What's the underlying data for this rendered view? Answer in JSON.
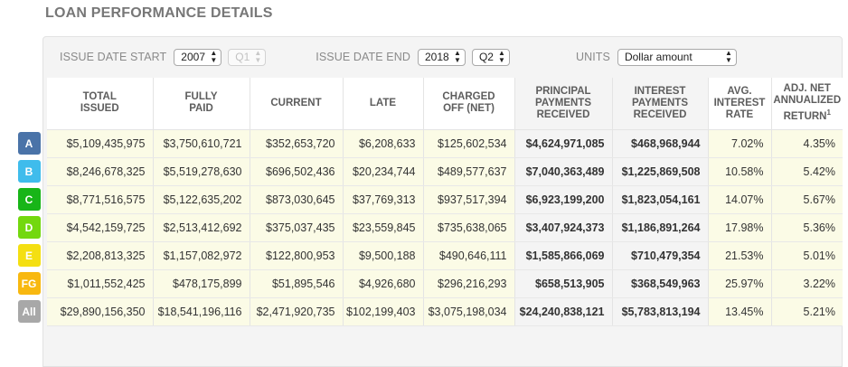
{
  "title": "LOAN PERFORMANCE DETAILS",
  "filters": {
    "issue_start_label": "ISSUE DATE START",
    "issue_start_year": "2007",
    "issue_start_quarter": "Q1",
    "issue_end_label": "ISSUE DATE END",
    "issue_end_year": "2018",
    "issue_end_quarter": "Q2",
    "units_label": "UNITS",
    "units_value": "Dollar amount"
  },
  "headers": {
    "total_issued": [
      "TOTAL",
      "ISSUED"
    ],
    "fully_paid": [
      "FULLY",
      "PAID"
    ],
    "current": [
      "CURRENT"
    ],
    "late": [
      "LATE"
    ],
    "charged_off": [
      "CHARGED",
      "OFF (NET)"
    ],
    "principal": [
      "PRINCIPAL",
      "PAYMENTS",
      "RECEIVED"
    ],
    "interest": [
      "INTEREST",
      "PAYMENTS",
      "RECEIVED"
    ],
    "avg_rate": [
      "AVG.",
      "INTEREST",
      "RATE"
    ],
    "adj_return": [
      "ADJ. NET",
      "ANNUALIZED",
      "RETURN"
    ],
    "adj_return_sup": "1"
  },
  "rows": [
    {
      "grade": "A",
      "color": "#4a73a8",
      "total": "$5,109,435,975",
      "fully": "$3,750,610,721",
      "current": "$352,653,720",
      "late": "$6,208,633",
      "charged": "$125,602,534",
      "principal": "$4,624,971,085",
      "interest": "$468,968,944",
      "rate": "7.02%",
      "ret": "4.35%"
    },
    {
      "grade": "B",
      "color": "#3fbcec",
      "total": "$8,246,678,325",
      "fully": "$5,519,278,630",
      "current": "$696,502,436",
      "late": "$20,234,744",
      "charged": "$489,577,637",
      "principal": "$7,040,363,489",
      "interest": "$1,225,869,508",
      "rate": "10.58%",
      "ret": "5.42%"
    },
    {
      "grade": "C",
      "color": "#18b518",
      "total": "$8,771,516,575",
      "fully": "$5,122,635,202",
      "current": "$873,030,645",
      "late": "$37,769,313",
      "charged": "$937,517,394",
      "principal": "$6,923,199,200",
      "interest": "$1,823,054,161",
      "rate": "14.07%",
      "ret": "5.67%"
    },
    {
      "grade": "D",
      "color": "#73d80f",
      "total": "$4,542,159,725",
      "fully": "$2,513,412,692",
      "current": "$375,037,435",
      "late": "$23,559,845",
      "charged": "$735,638,065",
      "principal": "$3,407,924,373",
      "interest": "$1,186,891,264",
      "rate": "17.98%",
      "ret": "5.36%"
    },
    {
      "grade": "E",
      "color": "#f4df12",
      "total": "$2,208,813,325",
      "fully": "$1,157,082,972",
      "current": "$122,800,953",
      "late": "$9,500,188",
      "charged": "$490,646,111",
      "principal": "$1,585,866,069",
      "interest": "$710,479,354",
      "rate": "21.53%",
      "ret": "5.01%"
    },
    {
      "grade": "FG",
      "color": "#f8b810",
      "total": "$1,011,552,425",
      "fully": "$478,175,899",
      "current": "$51,895,546",
      "late": "$4,926,680",
      "charged": "$296,216,293",
      "principal": "$658,513,905",
      "interest": "$368,549,963",
      "rate": "25.97%",
      "ret": "3.22%"
    },
    {
      "grade": "All",
      "color": "#a8a8a8",
      "total": "$29,890,156,350",
      "fully": "$18,541,196,116",
      "current": "$2,471,920,735",
      "late": "$102,199,403",
      "charged": "$3,075,198,034",
      "principal": "$24,240,838,121",
      "interest": "$5,783,813,194",
      "rate": "13.45%",
      "ret": "5.21%"
    }
  ]
}
